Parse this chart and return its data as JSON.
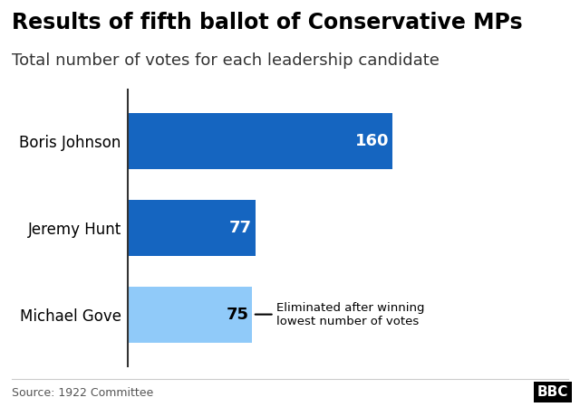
{
  "title": "Results of fifth ballot of Conservative MPs",
  "subtitle": "Total number of votes for each leadership candidate",
  "candidates": [
    "Boris Johnson",
    "Jeremy Hunt",
    "Michael Gove"
  ],
  "values": [
    160,
    77,
    75
  ],
  "bar_colors": [
    "#1565C0",
    "#1565C0",
    "#90CAF9"
  ],
  "value_label_color_dark": "#000000",
  "value_label_color_light": "#ffffff",
  "xlim": [
    0,
    175
  ],
  "title_fontsize": 17,
  "subtitle_fontsize": 13,
  "annotation_text": "Eliminated after winning\nlowest number of votes",
  "source_text": "Source: 1922 Committee",
  "bbc_text": "BBC",
  "background_color": "#ffffff"
}
